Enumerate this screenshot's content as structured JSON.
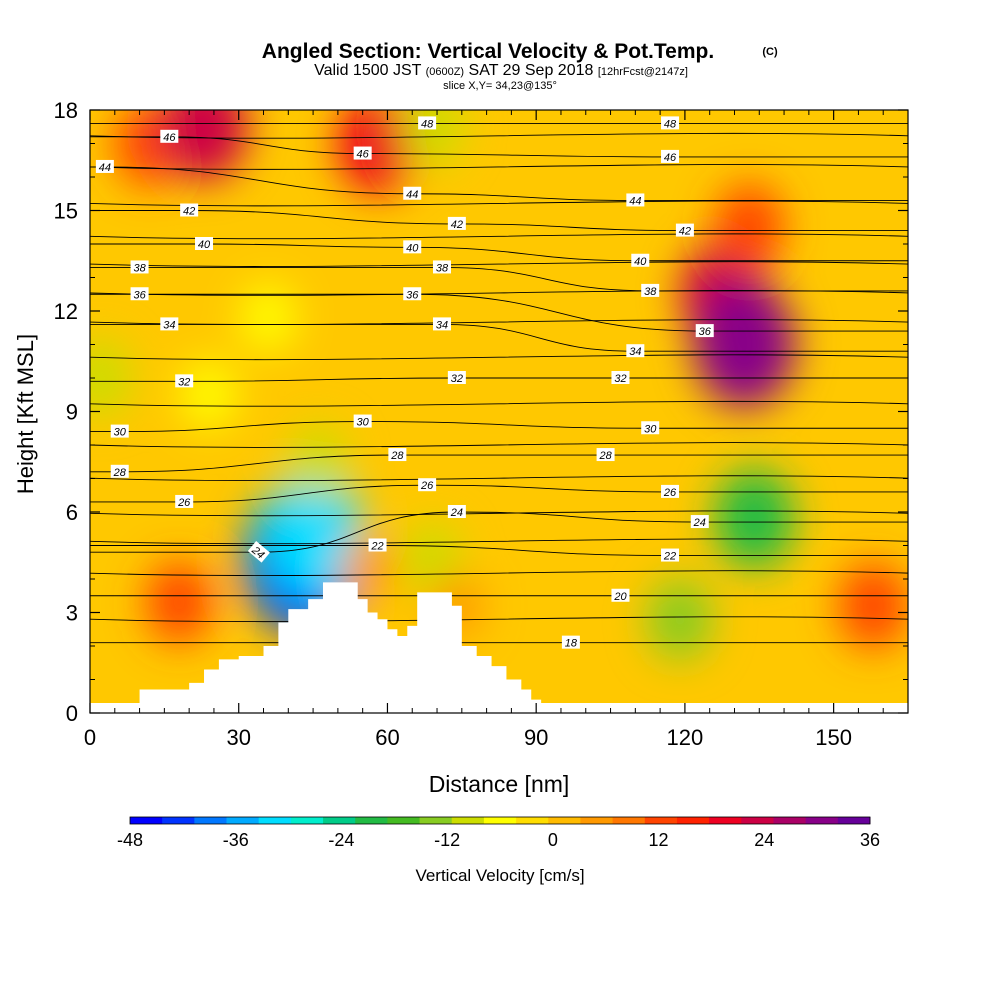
{
  "chart_data": {
    "type": "heatmap",
    "title": "Angled Section: Vertical Velocity & Pot.Temp.",
    "title_mark": "(C)",
    "subtitle_parts": [
      "Valid 1500 JST ",
      "(0600Z)",
      " SAT 29 Sep 2018 ",
      "[12hrFcst@2147z]"
    ],
    "slice_info": "slice X,Y= 34,23@135°",
    "xlabel": "Distance [nm]",
    "ylabel": "Height [Kft MSL]",
    "xlim": [
      0,
      165
    ],
    "ylim": [
      0,
      18
    ],
    "xticks": [
      0,
      30,
      60,
      90,
      120,
      150
    ],
    "yticks": [
      0,
      3,
      6,
      9,
      12,
      15,
      18
    ],
    "colorbar": {
      "label": "Vertical Velocity [cm/s]",
      "tick_labels": [
        "-48",
        "-36",
        "-24",
        "-12",
        "0",
        "12",
        "24",
        "36"
      ],
      "tick_values": [
        -48,
        -36,
        -24,
        -12,
        0,
        12,
        24,
        36
      ],
      "range": [
        -48,
        36
      ],
      "colors": [
        "#0000ff",
        "#0033ff",
        "#0077ff",
        "#00aaff",
        "#00ddff",
        "#00eecc",
        "#00cc88",
        "#22bb44",
        "#44bb22",
        "#88cc22",
        "#ccdd00",
        "#ffff00",
        "#ffdd00",
        "#ffbb00",
        "#ff9900",
        "#ff7700",
        "#ff4400",
        "#ff2200",
        "#ee0022",
        "#cc0044",
        "#aa0066",
        "#880088",
        "#660099"
      ]
    },
    "velocity_features": [
      {
        "x": 18,
        "y": 3.3,
        "value": 12
      },
      {
        "x": 12,
        "y": 17.0,
        "value": 14
      },
      {
        "x": 23,
        "y": 17.5,
        "value": 24
      },
      {
        "x": 58,
        "y": 17.0,
        "value": 20
      },
      {
        "x": 128,
        "y": 12.5,
        "value": 24
      },
      {
        "x": 132,
        "y": 11.0,
        "value": 32
      },
      {
        "x": 133,
        "y": 14.5,
        "value": 14
      },
      {
        "x": 158,
        "y": 3.2,
        "value": 14
      },
      {
        "x": 24,
        "y": 9.5,
        "value": -6
      },
      {
        "x": 2,
        "y": 10.0,
        "value": -10
      },
      {
        "x": 36,
        "y": 11.8,
        "value": -6
      },
      {
        "x": 43,
        "y": 4.6,
        "value": -42
      },
      {
        "x": 45,
        "y": 5.3,
        "value": -32
      },
      {
        "x": 46,
        "y": 7.5,
        "value": -8
      },
      {
        "x": 119,
        "y": 2.8,
        "value": -12
      },
      {
        "x": 134,
        "y": 5.8,
        "value": -20
      },
      {
        "x": 69,
        "y": 4.6,
        "value": -8
      },
      {
        "x": 69,
        "y": 17.5,
        "value": -10
      },
      {
        "x": 56,
        "y": 4.3,
        "value": 6
      },
      {
        "x": 74,
        "y": 3.2,
        "value": 4
      }
    ],
    "contour_labels": [
      {
        "text": "46",
        "x": 16,
        "y": 17.2
      },
      {
        "text": "44",
        "x": 3,
        "y": 16.3
      },
      {
        "text": "42",
        "x": 20,
        "y": 15.0
      },
      {
        "text": "40",
        "x": 23,
        "y": 14.0
      },
      {
        "text": "38",
        "x": 10,
        "y": 13.3
      },
      {
        "text": "36",
        "x": 10,
        "y": 12.5
      },
      {
        "text": "34",
        "x": 16,
        "y": 11.6
      },
      {
        "text": "32",
        "x": 19,
        "y": 9.9
      },
      {
        "text": "30",
        "x": 6,
        "y": 8.4
      },
      {
        "text": "28",
        "x": 6,
        "y": 7.2
      },
      {
        "text": "26",
        "x": 19,
        "y": 6.3
      },
      {
        "text": "24",
        "x": 34,
        "y": 4.8,
        "angle": 40
      },
      {
        "text": "48",
        "x": 68,
        "y": 17.6
      },
      {
        "text": "46",
        "x": 55,
        "y": 16.7
      },
      {
        "text": "44",
        "x": 65,
        "y": 15.5
      },
      {
        "text": "42",
        "x": 74,
        "y": 14.6
      },
      {
        "text": "40",
        "x": 65,
        "y": 13.9
      },
      {
        "text": "38",
        "x": 71,
        "y": 13.3
      },
      {
        "text": "36",
        "x": 65,
        "y": 12.5
      },
      {
        "text": "34",
        "x": 71,
        "y": 11.6
      },
      {
        "text": "32",
        "x": 74,
        "y": 10.0
      },
      {
        "text": "30",
        "x": 55,
        "y": 8.7
      },
      {
        "text": "28",
        "x": 62,
        "y": 7.7
      },
      {
        "text": "26",
        "x": 68,
        "y": 6.8
      },
      {
        "text": "24",
        "x": 74,
        "y": 6.0
      },
      {
        "text": "22",
        "x": 58,
        "y": 5.0
      },
      {
        "text": "48",
        "x": 117,
        "y": 17.6
      },
      {
        "text": "46",
        "x": 117,
        "y": 16.6
      },
      {
        "text": "44",
        "x": 110,
        "y": 15.3
      },
      {
        "text": "42",
        "x": 120,
        "y": 14.4
      },
      {
        "text": "40",
        "x": 111,
        "y": 13.5
      },
      {
        "text": "38",
        "x": 113,
        "y": 12.6
      },
      {
        "text": "36",
        "x": 124,
        "y": 11.4
      },
      {
        "text": "34",
        "x": 110,
        "y": 10.8
      },
      {
        "text": "32",
        "x": 107,
        "y": 10.0
      },
      {
        "text": "30",
        "x": 113,
        "y": 8.5
      },
      {
        "text": "28",
        "x": 104,
        "y": 7.7
      },
      {
        "text": "26",
        "x": 117,
        "y": 6.6
      },
      {
        "text": "24",
        "x": 123,
        "y": 5.7
      },
      {
        "text": "22",
        "x": 117,
        "y": 4.7
      },
      {
        "text": "20",
        "x": 107,
        "y": 3.5
      },
      {
        "text": "18",
        "x": 97,
        "y": 2.1
      }
    ],
    "terrain_steps": [
      [
        0,
        0.3
      ],
      [
        10,
        0.7
      ],
      [
        20,
        0.9
      ],
      [
        23,
        1.3
      ],
      [
        26,
        1.6
      ],
      [
        30,
        1.7
      ],
      [
        35,
        2.0
      ],
      [
        38,
        2.7
      ],
      [
        40,
        3.1
      ],
      [
        44,
        3.4
      ],
      [
        47,
        3.9
      ],
      [
        52,
        3.9
      ],
      [
        54,
        3.4
      ],
      [
        56,
        3.0
      ],
      [
        58,
        2.8
      ],
      [
        60,
        2.5
      ],
      [
        62,
        2.3
      ],
      [
        64,
        2.6
      ],
      [
        65,
        2.6
      ],
      [
        66,
        3.6
      ],
      [
        72,
        3.6
      ],
      [
        73,
        3.2
      ],
      [
        75,
        2.0
      ],
      [
        78,
        1.7
      ],
      [
        81,
        1.4
      ],
      [
        84,
        1.0
      ],
      [
        87,
        0.7
      ],
      [
        89,
        0.4
      ],
      [
        91,
        0.3
      ],
      [
        165,
        0.3
      ]
    ]
  }
}
